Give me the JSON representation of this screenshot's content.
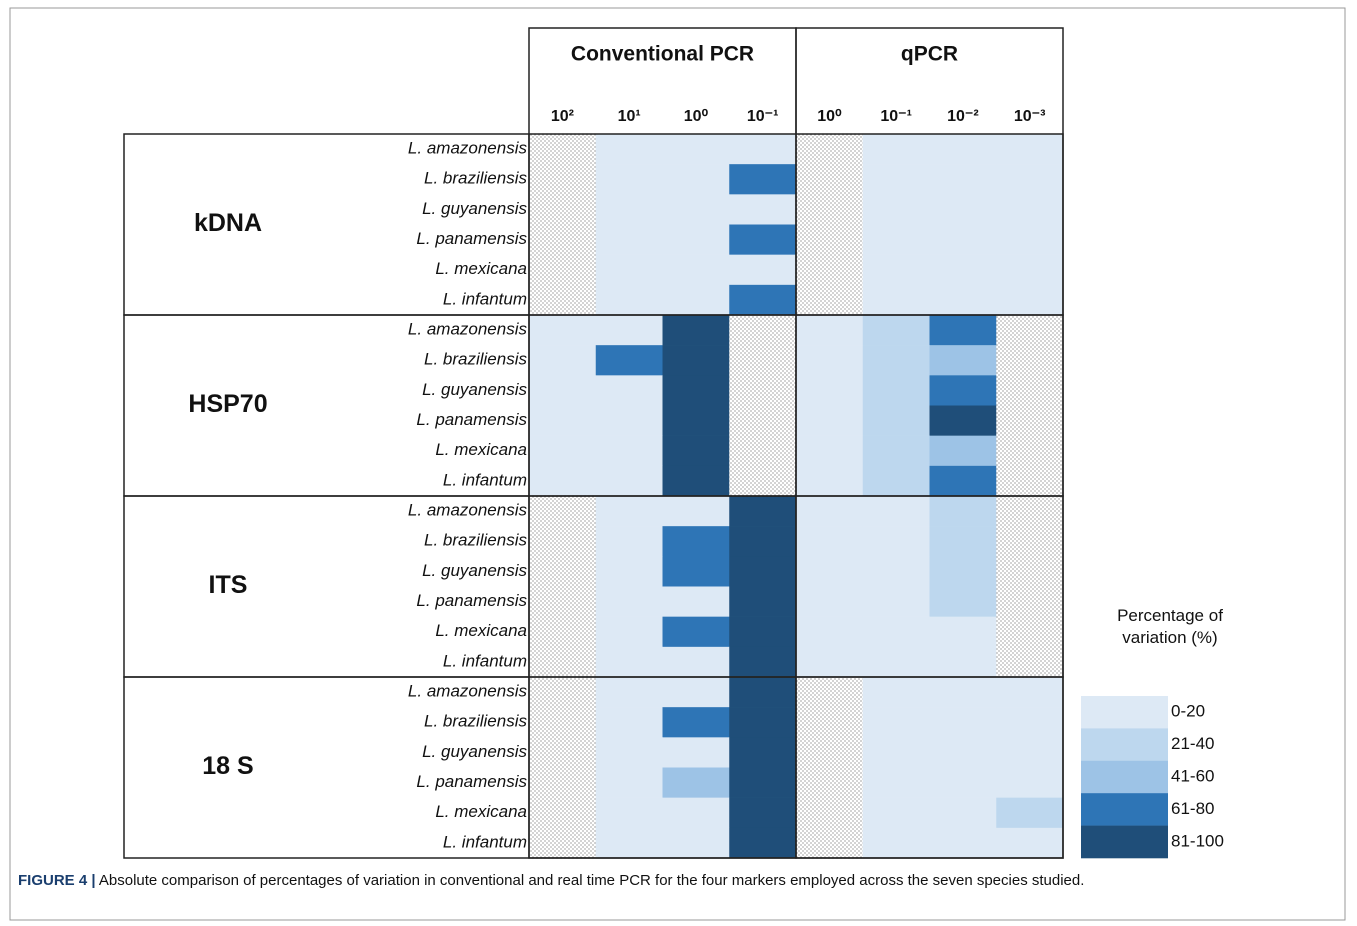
{
  "chart_data": {
    "type": "heatmap",
    "caption_label": "FIGURE 4 |",
    "caption": "Absolute comparison of percentages of variation in conventional and real time PCR for the four markers employed across the seven species studied.",
    "column_groups": [
      {
        "name": "Conventional PCR",
        "columns": [
          "10²",
          "10¹",
          "10⁰",
          "10⁻¹"
        ]
      },
      {
        "name": "qPCR",
        "columns": [
          "10⁰",
          "10⁻¹",
          "10⁻²",
          "10⁻³"
        ]
      }
    ],
    "row_groups": [
      {
        "name": "kDNA",
        "rows": [
          "L. amazonensis",
          "L. braziliensis",
          "L. guyanensis",
          "L. panamensis",
          "L. mexicana",
          "L. infantum"
        ],
        "values": [
          [
            null,
            10,
            10,
            10,
            null,
            10,
            10,
            10
          ],
          [
            null,
            10,
            10,
            70,
            null,
            10,
            10,
            10
          ],
          [
            null,
            10,
            10,
            10,
            null,
            10,
            10,
            10
          ],
          [
            null,
            10,
            10,
            70,
            null,
            10,
            10,
            10
          ],
          [
            null,
            10,
            10,
            10,
            null,
            10,
            10,
            10
          ],
          [
            null,
            10,
            10,
            70,
            null,
            10,
            10,
            10
          ]
        ]
      },
      {
        "name": "HSP70",
        "rows": [
          "L. amazonensis",
          "L. braziliensis",
          "L. guyanensis",
          "L. panamensis",
          "L. mexicana",
          "L. infantum"
        ],
        "values": [
          [
            10,
            10,
            90,
            null,
            10,
            30,
            70,
            null
          ],
          [
            10,
            70,
            90,
            null,
            10,
            30,
            50,
            null
          ],
          [
            10,
            10,
            90,
            null,
            10,
            30,
            70,
            null
          ],
          [
            10,
            10,
            90,
            null,
            10,
            30,
            90,
            null
          ],
          [
            10,
            10,
            90,
            null,
            10,
            30,
            50,
            null
          ],
          [
            10,
            10,
            90,
            null,
            10,
            30,
            70,
            null
          ]
        ]
      },
      {
        "name": "ITS",
        "rows": [
          "L. amazonensis",
          "L. braziliensis",
          "L. guyanensis",
          "L. panamensis",
          "L. mexicana",
          "L. infantum"
        ],
        "values": [
          [
            null,
            10,
            10,
            90,
            10,
            10,
            30,
            null
          ],
          [
            null,
            10,
            70,
            90,
            10,
            10,
            30,
            null
          ],
          [
            null,
            10,
            70,
            90,
            10,
            10,
            30,
            null
          ],
          [
            null,
            10,
            10,
            90,
            10,
            10,
            30,
            null
          ],
          [
            null,
            10,
            70,
            90,
            10,
            10,
            10,
            null
          ],
          [
            null,
            10,
            10,
            90,
            10,
            10,
            10,
            null
          ]
        ]
      },
      {
        "name": "18 S",
        "rows": [
          "L. amazonensis",
          "L. braziliensis",
          "L. guyanensis",
          "L. panamensis",
          "L. mexicana",
          "L. infantum"
        ],
        "values": [
          [
            null,
            10,
            10,
            90,
            null,
            10,
            10,
            10
          ],
          [
            null,
            10,
            70,
            90,
            null,
            10,
            10,
            10
          ],
          [
            null,
            10,
            10,
            90,
            null,
            10,
            10,
            10
          ],
          [
            null,
            10,
            50,
            90,
            null,
            10,
            10,
            10
          ],
          [
            null,
            10,
            10,
            90,
            null,
            10,
            10,
            30
          ],
          [
            null,
            10,
            10,
            90,
            null,
            10,
            10,
            10
          ]
        ]
      }
    ],
    "legend_title": "Percentage of variation (%)",
    "color_scale": [
      {
        "min": 0,
        "max": 20,
        "label": "0-20",
        "color": "#dde9f5"
      },
      {
        "min": 21,
        "max": 40,
        "label": "21-40",
        "color": "#bdd7ee"
      },
      {
        "min": 41,
        "max": 60,
        "label": "41-60",
        "color": "#9dc3e6"
      },
      {
        "min": 61,
        "max": 80,
        "label": "61-80",
        "color": "#2e75b6"
      },
      {
        "min": 81,
        "max": 100,
        "label": "81-100",
        "color": "#1f4e79"
      }
    ]
  }
}
